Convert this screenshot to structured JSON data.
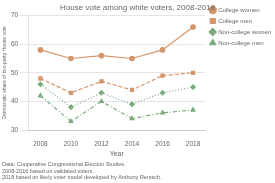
{
  "chart_data": {
    "type": "line",
    "title": "House vote among white voters, 2008-2018",
    "x_label": "Year",
    "y_label": "Democratic share of two-party House vote",
    "x": [
      2008,
      2010,
      2012,
      2014,
      2016,
      2018
    ],
    "series": [
      {
        "name": "College women",
        "color": "#D4956A",
        "line_style": "solid",
        "marker": "circle",
        "values": [
          58,
          55,
          56,
          55,
          58,
          66
        ]
      },
      {
        "name": "College men",
        "color": "#D4956A",
        "line_style": "dashed",
        "marker": "square",
        "values": [
          48,
          43,
          47,
          44,
          49,
          50
        ]
      },
      {
        "name": "Non-college women",
        "color": "#7AAB7A",
        "line_style": "dotted",
        "marker": "diamond",
        "values": [
          46,
          38,
          43,
          39,
          43,
          45
        ]
      },
      {
        "name": "Non-college men",
        "color": "#7AAB7A",
        "line_style": "dashdot",
        "marker": "triangle",
        "values": [
          42,
          33,
          40,
          34,
          36,
          37
        ]
      }
    ],
    "xlim": [
      2007.2,
      2018.8
    ],
    "xticks": [
      2008,
      2010,
      2012,
      2014,
      2016,
      2018
    ],
    "ylim": [
      30,
      70
    ],
    "yticks": [
      30,
      40,
      50,
      60,
      70
    ],
    "grid": "y",
    "legend": "right",
    "annotations": [
      "Data: Cooperative Congressional Election Studies.",
      "2008-2016 based on validated voters.",
      "2018 based on likely voter model developed by Anthony Rentsch."
    ]
  }
}
